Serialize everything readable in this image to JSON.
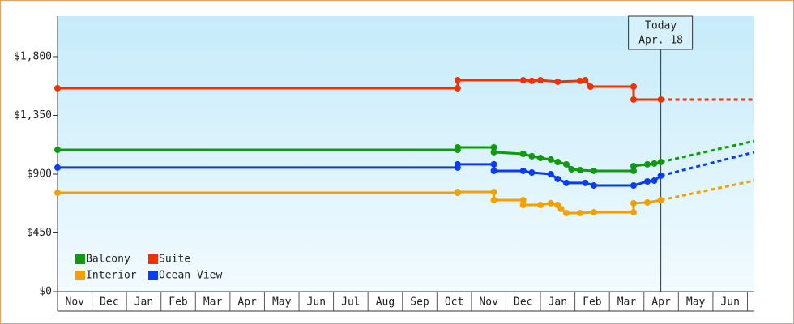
{
  "chart_data": {
    "type": "line",
    "ylim": [
      0,
      2110
    ],
    "yticks": [
      {
        "value": 0,
        "label": "$0"
      },
      {
        "value": 450,
        "label": "$450"
      },
      {
        "value": 900,
        "label": "$900"
      },
      {
        "value": 1350,
        "label": "$1,350"
      },
      {
        "value": 1800,
        "label": "$1,800"
      }
    ],
    "xlim": [
      0,
      20.2
    ],
    "xticks": [
      {
        "value": 0.5,
        "label": "Nov"
      },
      {
        "value": 1.5,
        "label": "Dec"
      },
      {
        "value": 2.5,
        "label": "Jan"
      },
      {
        "value": 3.5,
        "label": "Feb"
      },
      {
        "value": 4.5,
        "label": "Mar"
      },
      {
        "value": 5.5,
        "label": "Apr"
      },
      {
        "value": 6.5,
        "label": "May"
      },
      {
        "value": 7.5,
        "label": "Jun"
      },
      {
        "value": 8.5,
        "label": "Jul"
      },
      {
        "value": 9.5,
        "label": "Aug"
      },
      {
        "value": 10.5,
        "label": "Sep"
      },
      {
        "value": 11.5,
        "label": "Oct"
      },
      {
        "value": 12.5,
        "label": "Nov"
      },
      {
        "value": 13.5,
        "label": "Dec"
      },
      {
        "value": 14.5,
        "label": "Jan"
      },
      {
        "value": 15.5,
        "label": "Feb"
      },
      {
        "value": 16.5,
        "label": "Mar"
      },
      {
        "value": 17.5,
        "label": "Apr"
      },
      {
        "value": 18.5,
        "label": "May"
      },
      {
        "value": 19.5,
        "label": "Jun"
      }
    ],
    "today": {
      "x": 17.49,
      "label": [
        "Today",
        "Apr. 18"
      ]
    },
    "legend": "bottom-left",
    "series": [
      {
        "name": "Balcony",
        "color": "#109a10",
        "x": [
          0,
          11.6,
          11.6,
          12.65,
          12.65,
          13.5,
          13.75,
          14.0,
          14.3,
          14.5,
          14.75,
          14.9,
          15.15,
          15.55,
          16.7,
          16.7,
          17.1,
          17.3,
          17.49
        ],
        "values": [
          1086,
          1086,
          1105,
          1105,
          1068,
          1055,
          1037,
          1024,
          1012,
          993,
          975,
          937,
          931,
          925,
          925,
          962,
          975,
          981,
          993
        ],
        "forecast": {
          "x": [
            17.49,
            20.2
          ],
          "values": [
            993,
            1154
          ]
        }
      },
      {
        "name": "Suite",
        "color": "#ee3300",
        "x": [
          0,
          11.6,
          11.6,
          13.5,
          13.75,
          14.0,
          14.5,
          15.15,
          15.3,
          15.45,
          16.7,
          16.7,
          17.49
        ],
        "values": [
          1558,
          1558,
          1620,
          1620,
          1614,
          1620,
          1608,
          1614,
          1620,
          1570,
          1570,
          1471,
          1471
        ],
        "forecast": {
          "x": [
            17.49,
            20.2
          ],
          "values": [
            1471,
            1471
          ]
        }
      },
      {
        "name": "Interior",
        "color": "#f5a000",
        "x": [
          0,
          11.6,
          11.6,
          12.65,
          12.65,
          13.5,
          13.5,
          14.0,
          14.3,
          14.5,
          14.6,
          14.75,
          15.15,
          15.55,
          16.7,
          16.7,
          17.1,
          17.49
        ],
        "values": [
          757,
          757,
          763,
          763,
          701,
          701,
          664,
          664,
          677,
          664,
          633,
          602,
          602,
          608,
          608,
          677,
          683,
          701
        ],
        "forecast": {
          "x": [
            17.49,
            20.2
          ],
          "values": [
            701,
            850
          ]
        }
      },
      {
        "name": "Ocean View",
        "color": "#0a3cf0",
        "x": [
          0,
          11.6,
          11.6,
          12.65,
          12.65,
          13.5,
          13.75,
          14.3,
          14.5,
          14.75,
          15.3,
          15.55,
          16.7,
          17.1,
          17.3,
          17.49
        ],
        "values": [
          950,
          950,
          975,
          975,
          925,
          925,
          912,
          900,
          863,
          832,
          832,
          813,
          813,
          844,
          850,
          888
        ],
        "forecast": {
          "x": [
            17.49,
            20.2
          ],
          "values": [
            888,
            1068
          ]
        }
      }
    ]
  }
}
